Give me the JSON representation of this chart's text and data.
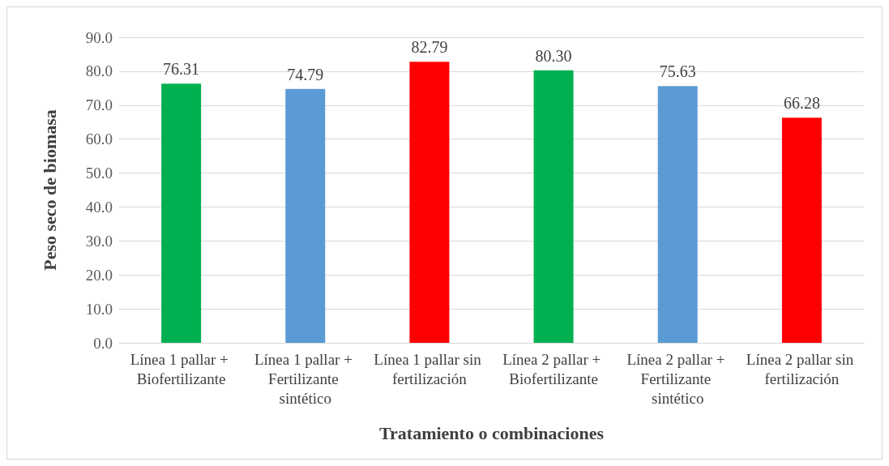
{
  "chart_data": {
    "type": "bar",
    "xlabel": "Tratamiento o combinaciones",
    "ylabel": "Peso seco de biomasa",
    "categories": [
      "Línea 1 pallar + Biofertilizante",
      "Línea 1 pallar + Fertilizante sintético",
      "Línea 1 pallar sin fertilización",
      "Línea 2 pallar + Biofertilizante",
      "Línea 2 pallar + Fertilizante sintético",
      "Línea 2 pallar sin fertilización"
    ],
    "values": [
      76.31,
      74.79,
      82.79,
      80.3,
      75.63,
      66.28
    ],
    "value_labels": [
      "76.31",
      "74.79",
      "82.79",
      "80.30",
      "75.63",
      "66.28"
    ],
    "colors": [
      "#00b050",
      "#5b9bd5",
      "#ff0000",
      "#00b050",
      "#5b9bd5",
      "#ff0000"
    ],
    "ylim": [
      0,
      90
    ],
    "yticks": [
      {
        "value": 0,
        "label": "0.0"
      },
      {
        "value": 10,
        "label": "10.0"
      },
      {
        "value": 20,
        "label": "20.0"
      },
      {
        "value": 30,
        "label": "30.0"
      },
      {
        "value": 40,
        "label": "40.0"
      },
      {
        "value": 50,
        "label": "50.0"
      },
      {
        "value": 60,
        "label": "60.0"
      },
      {
        "value": 70,
        "label": "70.0"
      },
      {
        "value": 80,
        "label": "80.0"
      },
      {
        "value": 90,
        "label": "90.0"
      }
    ],
    "grid": "y"
  }
}
